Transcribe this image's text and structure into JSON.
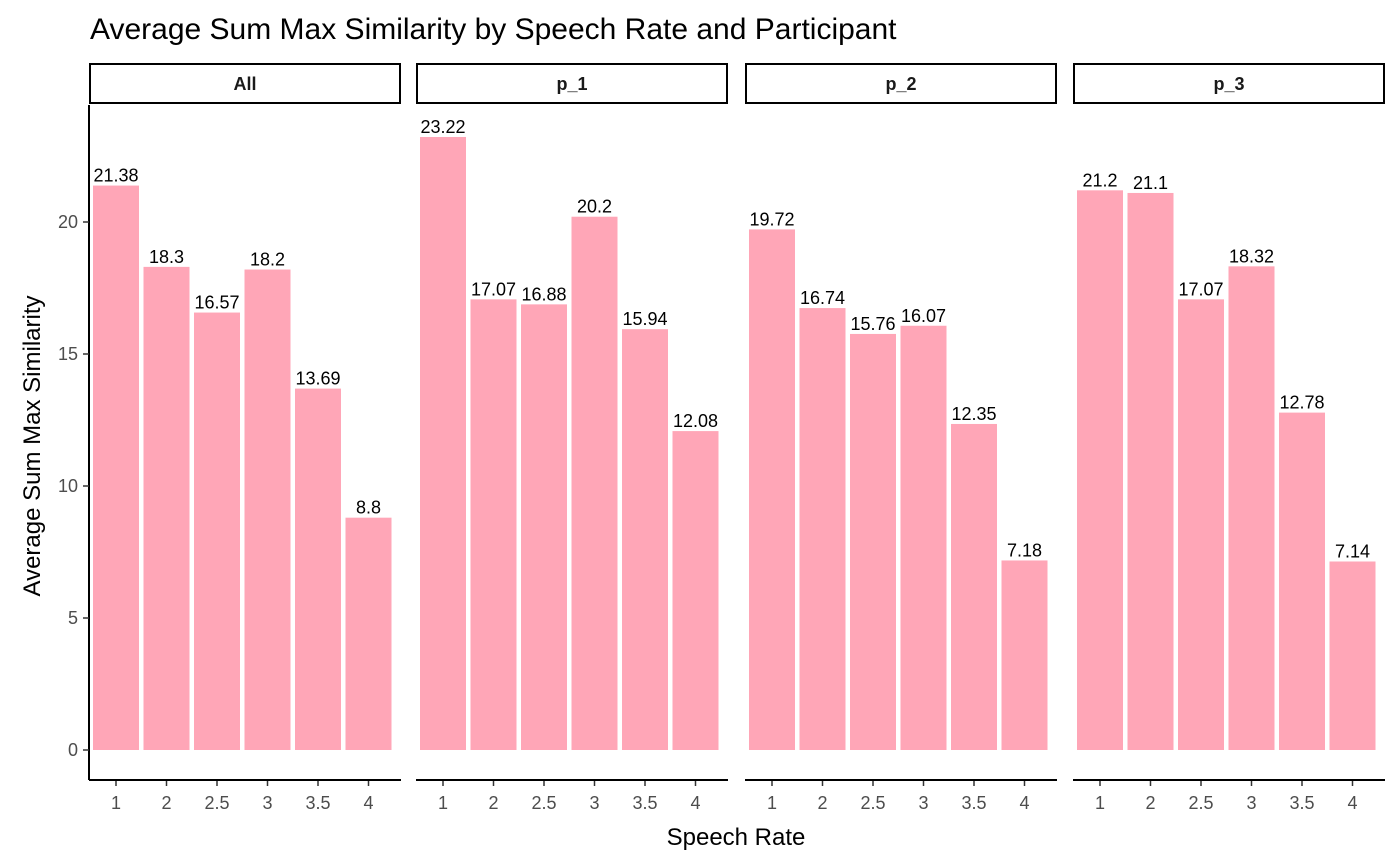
{
  "chart_data": {
    "type": "bar",
    "title": "Average Sum Max Similarity by Speech Rate and Participant",
    "xlabel": "Speech Rate",
    "ylabel": "Average Sum Max Similarity",
    "categories": [
      "1",
      "2",
      "2.5",
      "3",
      "3.5",
      "4"
    ],
    "ylim": [
      0,
      24
    ],
    "yticks": [
      0,
      5,
      10,
      15,
      20
    ],
    "bar_color": "#FFA6B7",
    "grid": false,
    "legend": "none",
    "facets": [
      {
        "label": "All",
        "values": [
          21.38,
          18.3,
          16.57,
          18.2,
          13.69,
          8.8
        ]
      },
      {
        "label": "p_1",
        "values": [
          23.22,
          17.07,
          16.88,
          20.2,
          15.94,
          12.08
        ]
      },
      {
        "label": "p_2",
        "values": [
          19.72,
          16.74,
          15.76,
          16.07,
          12.35,
          7.18
        ]
      },
      {
        "label": "p_3",
        "values": [
          21.2,
          21.1,
          17.07,
          18.32,
          12.78,
          7.14
        ]
      }
    ]
  }
}
